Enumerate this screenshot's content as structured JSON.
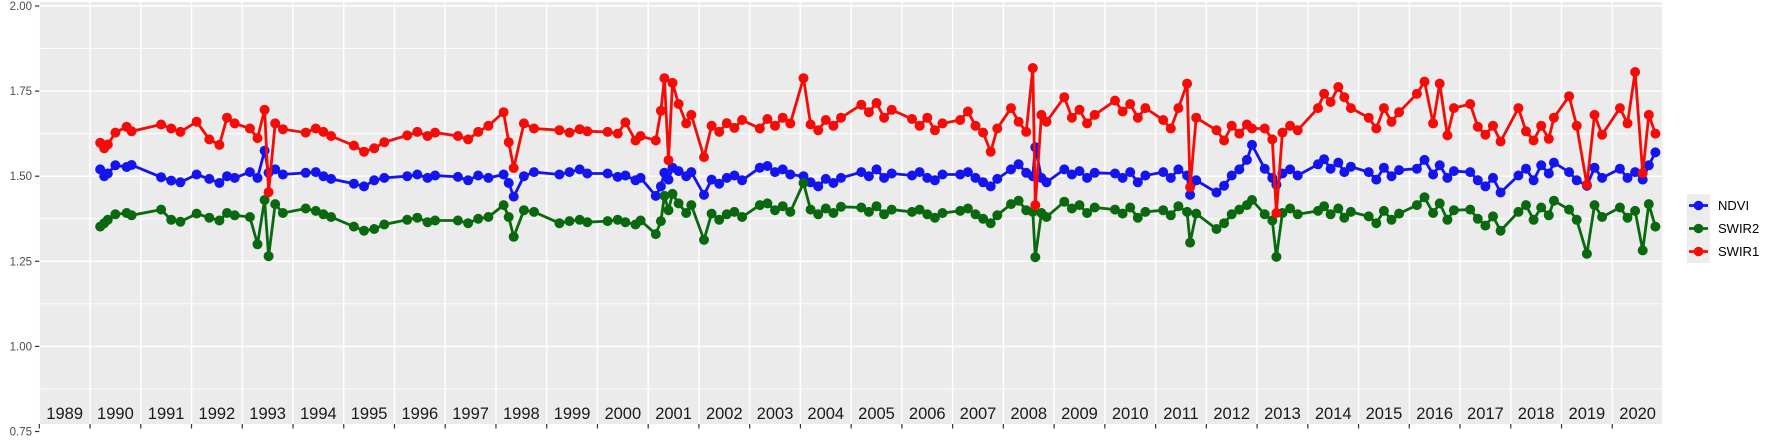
{
  "chart_data": {
    "type": "line",
    "title": "",
    "xlabel": "",
    "ylabel": "",
    "grid": "on",
    "panel_background": "#ebebeb",
    "gridline_color": "#ffffff",
    "axis_text_color": "#4d4d4d",
    "x_axis": {
      "tick_years": [
        1989,
        1990,
        1991,
        1992,
        1993,
        1994,
        1995,
        1996,
        1997,
        1998,
        1999,
        2000,
        2001,
        2002,
        2003,
        2004,
        2005,
        2006,
        2007,
        2008,
        2009,
        2010,
        2011,
        2012,
        2013,
        2014,
        2015,
        2016,
        2017,
        2018,
        2019,
        2020
      ],
      "tick_labels": [
        "1989",
        "1990",
        "1991",
        "1992",
        "1993",
        "1994",
        "1995",
        "1996",
        "1997",
        "1998",
        "1999",
        "2000",
        "2001",
        "2002",
        "2003",
        "2004",
        "2005",
        "2006",
        "2007",
        "2008",
        "2009",
        "2010",
        "2011",
        "2012",
        "2013",
        "2014",
        "2015",
        "2016",
        "2017",
        "2018",
        "2019",
        "2020"
      ],
      "range": [
        1989,
        2021
      ]
    },
    "y_axis": {
      "tick_values": [
        2.0,
        1.75,
        1.5,
        1.25,
        1.0,
        0.75
      ],
      "tick_labels": [
        "2.00",
        "1.75",
        "1.50",
        "1.25",
        "1.00",
        "0.75"
      ],
      "minor_tick_values": [
        1.875,
        1.625,
        1.375,
        1.125,
        0.875
      ],
      "range": [
        0.75,
        2.0
      ]
    },
    "legend": {
      "position": "right",
      "entries": [
        {
          "label": "NDVI",
          "color": "#1414f0"
        },
        {
          "label": "SWIR2",
          "color": "#0a690f"
        },
        {
          "label": "SWIR1",
          "color": "#f60b06"
        }
      ]
    },
    "x": [
      1990.2,
      1990.28,
      1990.35,
      1990.5,
      1990.72,
      1990.82,
      1991.4,
      1991.6,
      1991.78,
      1992.1,
      1992.35,
      1992.55,
      1992.7,
      1992.85,
      1993.15,
      1993.3,
      1993.44,
      1993.52,
      1993.65,
      1993.8,
      1994.25,
      1994.45,
      1994.6,
      1994.75,
      1995.2,
      1995.4,
      1995.6,
      1995.8,
      1996.25,
      1996.45,
      1996.65,
      1996.8,
      1997.25,
      1997.45,
      1997.65,
      1997.85,
      1998.15,
      1998.25,
      1998.35,
      1998.55,
      1998.75,
      1999.25,
      1999.45,
      1999.65,
      1999.8,
      2000.2,
      2000.4,
      2000.55,
      2000.75,
      2000.85,
      2001.15,
      2001.25,
      2001.32,
      2001.4,
      2001.48,
      2001.6,
      2001.75,
      2001.85,
      2002.1,
      2002.25,
      2002.4,
      2002.55,
      2002.7,
      2002.85,
      2003.2,
      2003.35,
      2003.5,
      2003.65,
      2003.8,
      2004.06,
      2004.2,
      2004.35,
      2004.5,
      2004.65,
      2004.8,
      2005.2,
      2005.35,
      2005.5,
      2005.65,
      2005.8,
      2006.2,
      2006.35,
      2006.5,
      2006.65,
      2006.8,
      2007.15,
      2007.3,
      2007.45,
      2007.6,
      2007.75,
      2007.88,
      2008.15,
      2008.3,
      2008.45,
      2008.58,
      2008.63,
      2008.75,
      2008.85,
      2009.2,
      2009.35,
      2009.5,
      2009.65,
      2009.8,
      2010.2,
      2010.35,
      2010.5,
      2010.65,
      2010.8,
      2011.15,
      2011.3,
      2011.45,
      2011.62,
      2011.68,
      2011.8,
      2012.2,
      2012.35,
      2012.5,
      2012.65,
      2012.8,
      2012.9,
      2013.15,
      2013.3,
      2013.38,
      2013.5,
      2013.65,
      2013.8,
      2014.2,
      2014.32,
      2014.45,
      2014.6,
      2014.72,
      2014.85,
      2015.2,
      2015.35,
      2015.5,
      2015.65,
      2015.8,
      2016.15,
      2016.3,
      2016.47,
      2016.6,
      2016.75,
      2016.88,
      2017.2,
      2017.35,
      2017.5,
      2017.65,
      2017.8,
      2018.15,
      2018.3,
      2018.45,
      2018.6,
      2018.75,
      2018.85,
      2019.15,
      2019.3,
      2019.5,
      2019.65,
      2019.8,
      2020.15,
      2020.3,
      2020.45,
      2020.6,
      2020.72,
      2020.85
    ],
    "series": [
      {
        "name": "NDVI",
        "color": "#1414f0",
        "values": [
          1.52,
          1.5,
          1.508,
          1.532,
          1.527,
          1.533,
          1.497,
          1.487,
          1.482,
          1.505,
          1.492,
          1.48,
          1.5,
          1.495,
          1.512,
          1.495,
          1.575,
          1.51,
          1.52,
          1.505,
          1.51,
          1.512,
          1.5,
          1.492,
          1.478,
          1.47,
          1.488,
          1.495,
          1.5,
          1.505,
          1.495,
          1.502,
          1.498,
          1.488,
          1.502,
          1.495,
          1.505,
          1.48,
          1.44,
          1.5,
          1.512,
          1.505,
          1.512,
          1.52,
          1.508,
          1.508,
          1.498,
          1.502,
          1.488,
          1.495,
          1.442,
          1.47,
          1.51,
          1.49,
          1.525,
          1.515,
          1.5,
          1.512,
          1.445,
          1.49,
          1.478,
          1.495,
          1.502,
          1.488,
          1.525,
          1.53,
          1.512,
          1.52,
          1.505,
          1.5,
          1.482,
          1.47,
          1.492,
          1.48,
          1.495,
          1.512,
          1.5,
          1.52,
          1.495,
          1.508,
          1.502,
          1.512,
          1.495,
          1.488,
          1.505,
          1.505,
          1.512,
          1.495,
          1.482,
          1.47,
          1.492,
          1.52,
          1.535,
          1.51,
          1.5,
          1.585,
          1.495,
          1.482,
          1.52,
          1.505,
          1.515,
          1.495,
          1.51,
          1.508,
          1.495,
          1.512,
          1.482,
          1.502,
          1.512,
          1.495,
          1.52,
          1.502,
          1.445,
          1.488,
          1.452,
          1.472,
          1.502,
          1.52,
          1.548,
          1.592,
          1.522,
          1.495,
          1.475,
          1.508,
          1.52,
          1.502,
          1.535,
          1.55,
          1.522,
          1.54,
          1.512,
          1.528,
          1.512,
          1.49,
          1.525,
          1.5,
          1.518,
          1.522,
          1.548,
          1.505,
          1.532,
          1.495,
          1.515,
          1.512,
          1.488,
          1.47,
          1.495,
          1.452,
          1.502,
          1.522,
          1.488,
          1.532,
          1.508,
          1.54,
          1.512,
          1.488,
          1.472,
          1.525,
          1.495,
          1.522,
          1.495,
          1.512,
          1.49,
          1.532,
          1.57
        ]
      },
      {
        "name": "SWIR2",
        "color": "#0a690f",
        "values": [
          1.352,
          1.362,
          1.372,
          1.388,
          1.392,
          1.385,
          1.402,
          1.372,
          1.366,
          1.39,
          1.378,
          1.37,
          1.392,
          1.385,
          1.38,
          1.3,
          1.43,
          1.265,
          1.418,
          1.392,
          1.405,
          1.398,
          1.388,
          1.38,
          1.352,
          1.34,
          1.345,
          1.358,
          1.372,
          1.378,
          1.365,
          1.37,
          1.37,
          1.362,
          1.375,
          1.38,
          1.415,
          1.38,
          1.322,
          1.4,
          1.395,
          1.362,
          1.368,
          1.372,
          1.365,
          1.368,
          1.372,
          1.365,
          1.358,
          1.37,
          1.33,
          1.368,
          1.442,
          1.4,
          1.448,
          1.42,
          1.392,
          1.415,
          1.313,
          1.39,
          1.372,
          1.388,
          1.395,
          1.38,
          1.415,
          1.42,
          1.4,
          1.412,
          1.395,
          1.48,
          1.402,
          1.388,
          1.405,
          1.392,
          1.41,
          1.408,
          1.395,
          1.412,
          1.388,
          1.402,
          1.395,
          1.402,
          1.388,
          1.378,
          1.392,
          1.398,
          1.405,
          1.388,
          1.375,
          1.362,
          1.385,
          1.418,
          1.428,
          1.4,
          1.395,
          1.262,
          1.392,
          1.38,
          1.425,
          1.405,
          1.415,
          1.392,
          1.408,
          1.402,
          1.39,
          1.408,
          1.378,
          1.395,
          1.4,
          1.385,
          1.412,
          1.395,
          1.305,
          1.39,
          1.345,
          1.362,
          1.388,
          1.402,
          1.415,
          1.43,
          1.388,
          1.37,
          1.263,
          1.392,
          1.405,
          1.388,
          1.398,
          1.412,
          1.388,
          1.405,
          1.378,
          1.395,
          1.382,
          1.362,
          1.398,
          1.372,
          1.39,
          1.415,
          1.438,
          1.392,
          1.42,
          1.372,
          1.4,
          1.402,
          1.375,
          1.355,
          1.382,
          1.34,
          1.395,
          1.415,
          1.372,
          1.408,
          1.385,
          1.428,
          1.402,
          1.372,
          1.272,
          1.415,
          1.38,
          1.408,
          1.378,
          1.398,
          1.282,
          1.418,
          1.352
        ]
      },
      {
        "name": "SWIR1",
        "color": "#f60b06",
        "values": [
          1.598,
          1.582,
          1.593,
          1.628,
          1.645,
          1.632,
          1.652,
          1.64,
          1.63,
          1.66,
          1.608,
          1.592,
          1.672,
          1.655,
          1.64,
          1.612,
          1.695,
          1.453,
          1.655,
          1.638,
          1.628,
          1.64,
          1.63,
          1.618,
          1.59,
          1.572,
          1.582,
          1.6,
          1.62,
          1.63,
          1.618,
          1.628,
          1.618,
          1.608,
          1.63,
          1.648,
          1.688,
          1.6,
          1.524,
          1.655,
          1.64,
          1.635,
          1.628,
          1.638,
          1.632,
          1.63,
          1.625,
          1.658,
          1.605,
          1.618,
          1.605,
          1.692,
          1.788,
          1.547,
          1.774,
          1.712,
          1.655,
          1.68,
          1.556,
          1.648,
          1.63,
          1.656,
          1.642,
          1.665,
          1.64,
          1.668,
          1.648,
          1.672,
          1.655,
          1.788,
          1.652,
          1.635,
          1.665,
          1.648,
          1.672,
          1.71,
          1.688,
          1.715,
          1.672,
          1.695,
          1.668,
          1.648,
          1.672,
          1.635,
          1.655,
          1.665,
          1.69,
          1.648,
          1.628,
          1.572,
          1.64,
          1.7,
          1.66,
          1.63,
          1.818,
          1.415,
          1.68,
          1.66,
          1.732,
          1.672,
          1.695,
          1.655,
          1.68,
          1.722,
          1.69,
          1.712,
          1.672,
          1.7,
          1.665,
          1.64,
          1.7,
          1.772,
          1.468,
          1.672,
          1.635,
          1.605,
          1.648,
          1.625,
          1.652,
          1.64,
          1.64,
          1.608,
          1.392,
          1.628,
          1.648,
          1.635,
          1.7,
          1.742,
          1.718,
          1.762,
          1.732,
          1.7,
          1.672,
          1.64,
          1.7,
          1.66,
          1.688,
          1.742,
          1.778,
          1.655,
          1.772,
          1.62,
          1.7,
          1.712,
          1.645,
          1.622,
          1.648,
          1.602,
          1.7,
          1.632,
          1.605,
          1.648,
          1.61,
          1.672,
          1.735,
          1.648,
          1.475,
          1.68,
          1.622,
          1.7,
          1.655,
          1.806,
          1.509,
          1.68,
          1.625
        ]
      }
    ]
  }
}
